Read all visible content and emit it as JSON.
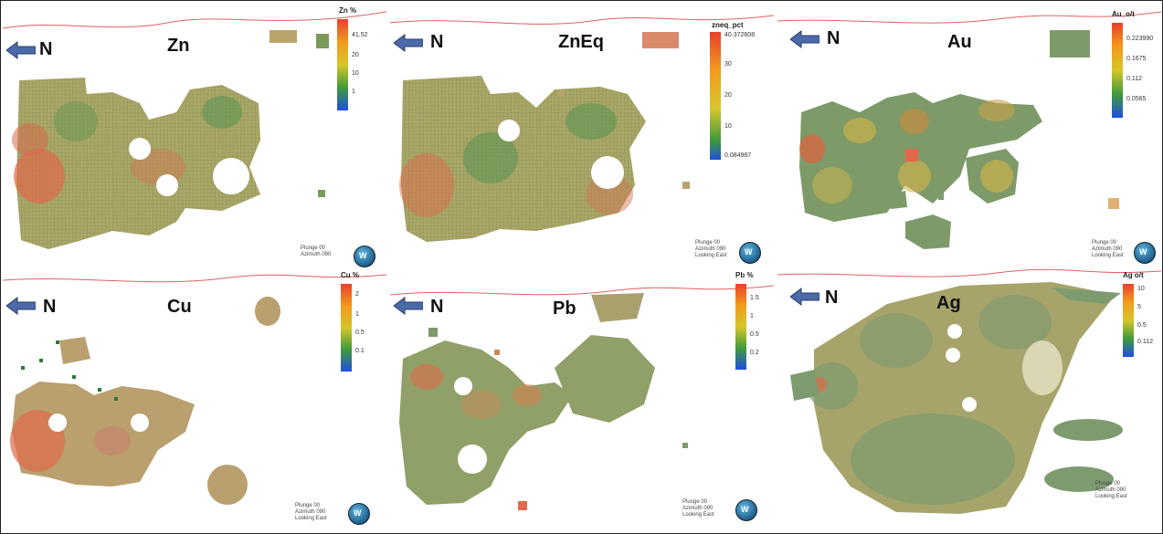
{
  "north_label": "N",
  "panels": [
    {
      "title": "Zn",
      "legend_title": "Zn %",
      "ticks": [
        "41.52",
        "20",
        "10",
        "1"
      ],
      "view": [
        "Plunge 00",
        "Azimuth 090"
      ]
    },
    {
      "title": "ZnEq",
      "legend_title": "zneq_pct",
      "ticks": [
        "40.372608",
        "30",
        "20",
        "10",
        "0.084987"
      ],
      "view": [
        "Plunge 00",
        "Azimuth 090",
        "Looking East"
      ]
    },
    {
      "title": "Au",
      "legend_title": "Au_o/t",
      "ticks": [
        "0.223990",
        "0.1675",
        "0.112",
        "0.0565"
      ],
      "view": [
        "Plunge 00",
        "Azimuth 090",
        "Looking East"
      ]
    },
    {
      "title": "Cu",
      "legend_title": "Cu %",
      "ticks": [
        "2",
        "1",
        "0.5",
        "0.1"
      ],
      "view": [
        "Plunge 00",
        "Azimuth 090",
        "Looking East"
      ]
    },
    {
      "title": "Pb",
      "legend_title": "Pb %",
      "ticks": [
        "1.5",
        "1",
        "0.5",
        "0.2"
      ],
      "view": [
        "Plunge 00",
        "Azimuth 090",
        "Looking East"
      ]
    },
    {
      "title": "Ag",
      "legend_title": "Ag o/t",
      "ticks": [
        "10",
        "5",
        "0.5",
        "0.112"
      ],
      "view": [
        "Plunge 00",
        "Azimuth 090",
        "Looking East"
      ]
    }
  ],
  "colors": {
    "red": "#e8412c",
    "orange": "#f39a1c",
    "yellow": "#d6c62a",
    "green": "#3f9a3a",
    "blue": "#1f4fe0",
    "arrow": "#4a6aa8",
    "topo_line": "#e06060"
  }
}
